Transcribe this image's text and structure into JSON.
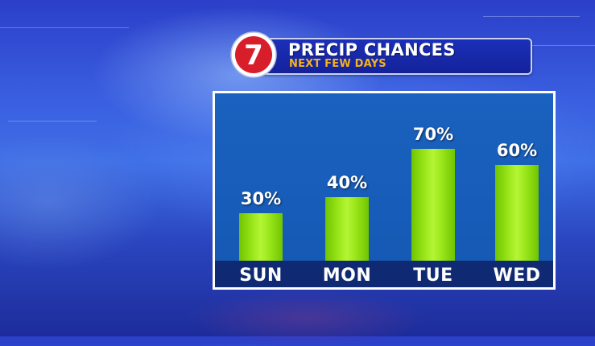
{
  "header": {
    "logo_text": "7",
    "title": "PRECIP CHANCES",
    "subtitle": "NEXT FEW DAYS"
  },
  "colors": {
    "bar": "#9ae61a",
    "panel": "#1a62bf",
    "axis_band": "#0f2a72",
    "header_bar": "#1b2fb8",
    "subtitle": "#f3b21f",
    "logo_red": "#d81e2a"
  },
  "chart_data": {
    "type": "bar",
    "title": "PRECIP CHANCES",
    "subtitle": "NEXT FEW DAYS",
    "categories": [
      "SUN",
      "MON",
      "TUE",
      "WED"
    ],
    "values": [
      30,
      40,
      70,
      60
    ],
    "value_labels": [
      "30%",
      "40%",
      "70%",
      "60%"
    ],
    "xlabel": "",
    "ylabel": "",
    "ylim": [
      0,
      100
    ],
    "grid": false,
    "legend": "none"
  }
}
